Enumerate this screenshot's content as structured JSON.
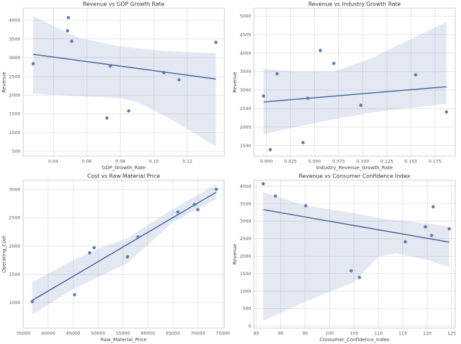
{
  "figure": {
    "background": "#ffffff",
    "layout": "2x2-subplot-grid"
  },
  "style": {
    "point_color": "#617db4",
    "point_edge": "#44639c",
    "line_color": "#3b5e95",
    "band_color": "rgba(102,129,181,0.18)",
    "grid_color": "#dcdcdc",
    "spine_color": "#cccccc",
    "plot_bg": "#ffffff",
    "title_color": "#333333",
    "tick_color": "#555555",
    "label_color": "#444444"
  },
  "chart_data": [
    {
      "type": "scatter",
      "title": "Revenue vs GDP Growth Rate",
      "xlabel": "GDP_Growth_Rate",
      "ylabel": "Revenue",
      "xlim": [
        0.022,
        0.142
      ],
      "ylim": [
        370,
        4320
      ],
      "xticks": [
        "0.04",
        "0.06",
        "0.08",
        "0.10",
        "0.12"
      ],
      "yticks": [
        "500",
        "1000",
        "1500",
        "2000",
        "2500",
        "3000",
        "3500",
        "4000"
      ],
      "grid": true,
      "legend": false,
      "points": [
        [
          0.028,
          2840
        ],
        [
          0.0485,
          3720
        ],
        [
          0.049,
          4070
        ],
        [
          0.051,
          3440
        ],
        [
          0.072,
          1390
        ],
        [
          0.074,
          2780
        ],
        [
          0.085,
          1580
        ],
        [
          0.106,
          2600
        ],
        [
          0.115,
          2410
        ],
        [
          0.137,
          3410
        ]
      ],
      "regression": {
        "x": [
          0.028,
          0.137
        ],
        "y": [
          3090,
          2430
        ]
      },
      "band": {
        "x": [
          0.028,
          0.055,
          0.08,
          0.09,
          0.105,
          0.12,
          0.137
        ],
        "lower": [
          2040,
          1970,
          1920,
          1820,
          1480,
          1100,
          620
        ],
        "upper": [
          4110,
          3530,
          3300,
          3250,
          3180,
          3150,
          3120
        ]
      }
    },
    {
      "type": "scatter",
      "title": "Revenue vs Industry Growth Rate",
      "xlabel": "Industry_Revenue_Growth_Rate",
      "ylabel": "Revenue",
      "xlim": [
        -0.013,
        0.196
      ],
      "ylim": [
        1215,
        5210
      ],
      "xticks": [
        "0.000",
        "0.025",
        "0.050",
        "0.075",
        "0.100",
        "0.125",
        "0.150",
        "0.175"
      ],
      "yticks": [
        "1500",
        "2000",
        "2500",
        "3000",
        "3500",
        "4000",
        "4500",
        "5000"
      ],
      "grid": true,
      "legend": false,
      "points": [
        [
          -0.003,
          2840
        ],
        [
          0.004,
          1390
        ],
        [
          0.011,
          3440
        ],
        [
          0.038,
          1580
        ],
        [
          0.043,
          2780
        ],
        [
          0.056,
          4070
        ],
        [
          0.07,
          3720
        ],
        [
          0.098,
          2590
        ],
        [
          0.155,
          3410
        ],
        [
          0.187,
          2410
        ]
      ],
      "regression": {
        "x": [
          -0.003,
          0.187
        ],
        "y": [
          2680,
          3090
        ]
      },
      "band": {
        "x": [
          -0.003,
          0.03,
          0.07,
          0.11,
          0.15,
          0.187
        ],
        "lower": [
          1810,
          2000,
          2210,
          2400,
          2520,
          2630
        ],
        "upper": [
          3575,
          3500,
          3500,
          3870,
          4380,
          4840
        ]
      }
    },
    {
      "type": "scatter",
      "title": "Cost vs Raw Material Price",
      "xlabel": "Raw_Material_Price",
      "ylabel": "Operating_Cost",
      "xlim": [
        34970,
        75300
      ],
      "ylim": [
        550,
        3160
      ],
      "xticks": [
        "35000",
        "40000",
        "45000",
        "50000",
        "55000",
        "60000",
        "65000",
        "70000",
        "75000"
      ],
      "yticks": [
        "1000",
        "1500",
        "2000",
        "2500",
        "3000"
      ],
      "grid": true,
      "legend": false,
      "points": [
        [
          36800,
          1020
        ],
        [
          45300,
          1140
        ],
        [
          48300,
          1880
        ],
        [
          49200,
          1970
        ],
        [
          55900,
          1810
        ],
        [
          58000,
          2160
        ],
        [
          66000,
          2600
        ],
        [
          69300,
          2730
        ],
        [
          70000,
          2640
        ],
        [
          73700,
          3000
        ]
      ],
      "regression": {
        "x": [
          36800,
          73700
        ],
        "y": [
          1040,
          2950
        ]
      },
      "band": {
        "x": [
          36800,
          45000,
          50000,
          55900,
          65000,
          73700
        ],
        "lower": [
          790,
          1240,
          1450,
          1700,
          2420,
          2830
        ],
        "upper": [
          1360,
          1750,
          1950,
          2140,
          2650,
          3090
        ]
      }
    },
    {
      "type": "scatter",
      "title": "Revenue vs Consumer Confidence Index",
      "xlabel": "Consumer_Confidence_Index",
      "ylabel": "Revenue",
      "xlim": [
        84.5,
        125.7
      ],
      "ylim": [
        -60,
        4170
      ],
      "xticks": [
        "85",
        "90",
        "95",
        "100",
        "105",
        "110",
        "115",
        "120",
        "125"
      ],
      "yticks": [
        "0",
        "500",
        "1000",
        "1500",
        "2000",
        "2500",
        "3000",
        "3500",
        "4000"
      ],
      "grid": true,
      "legend": false,
      "points": [
        [
          86.4,
          4070
        ],
        [
          88.9,
          3720
        ],
        [
          95.1,
          3440
        ],
        [
          104.4,
          1580
        ],
        [
          106.1,
          1390
        ],
        [
          115.5,
          2410
        ],
        [
          119.6,
          2840
        ],
        [
          120.9,
          2590
        ],
        [
          121.2,
          3410
        ],
        [
          124.5,
          2780
        ]
      ],
      "regression": {
        "x": [
          86.4,
          124.5
        ],
        "y": [
          3330,
          2400
        ]
      },
      "band": {
        "x": [
          86.4,
          95,
          105,
          110,
          113.7,
          120,
          124.5
        ],
        "lower": [
          150,
          700,
          1260,
          1990,
          2080,
          1890,
          1680
        ],
        "upper": [
          3830,
          3450,
          3230,
          3090,
          3030,
          2930,
          2850
        ]
      }
    }
  ]
}
